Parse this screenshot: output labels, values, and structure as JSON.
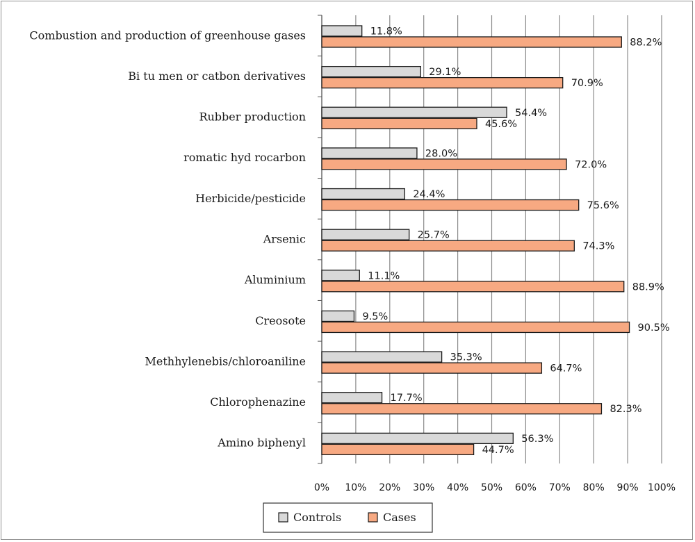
{
  "chart_data": {
    "type": "bar",
    "orientation": "horizontal",
    "categories": [
      "Combustion and production of greenhouse gases",
      "Bi tu men or catbon derivatives",
      "Rubber production",
      "romatic hyd rocarbon",
      "Herbicide/pesticide",
      "Arsenic",
      "Aluminium",
      "Creosote",
      "Methhylenebis/chloroaniline",
      "Chlorophenazine",
      "Amino biphenyl"
    ],
    "series": [
      {
        "name": "Controls",
        "color": "#d9d9d9",
        "values": [
          11.8,
          29.1,
          54.4,
          28.0,
          24.4,
          25.7,
          11.1,
          9.5,
          35.3,
          17.7,
          56.3
        ],
        "labels": [
          "11.8%",
          "29.1%",
          "54.4%",
          "28.0%",
          "24.4%",
          "25.7%",
          "11.1%",
          "9.5%",
          "35.3%",
          "17.7%",
          "56.3%"
        ]
      },
      {
        "name": "Cases",
        "color": "#f7a982",
        "values": [
          88.2,
          70.9,
          45.6,
          72.0,
          75.6,
          74.3,
          88.9,
          90.5,
          64.7,
          82.3,
          44.7
        ],
        "labels": [
          "88.2%",
          "70.9%",
          "45.6%",
          "72.0%",
          "75.6%",
          "74.3%",
          "88.9%",
          "90.5%",
          "64.7%",
          "82.3%",
          "44.7%"
        ]
      }
    ],
    "x_ticks": [
      "0%",
      "10%",
      "20%",
      "30%",
      "40%",
      "50%",
      "60%",
      "70%",
      "80%",
      "90%",
      "100%"
    ],
    "xlim": [
      0,
      100
    ],
    "grid": true,
    "legend": "bottom-center",
    "title": "",
    "xlabel": "",
    "ylabel": ""
  }
}
